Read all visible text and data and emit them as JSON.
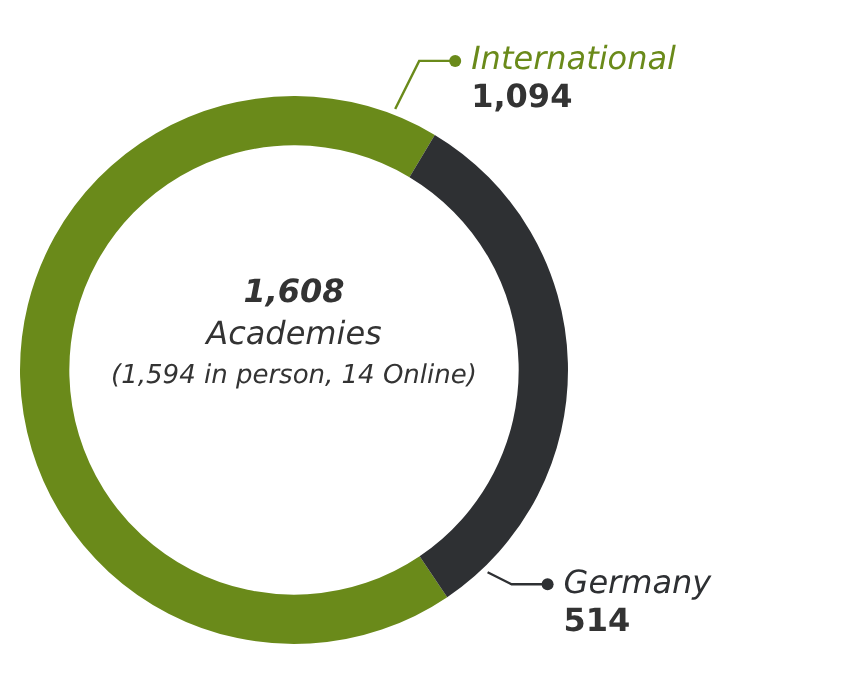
{
  "chart_data": {
    "type": "donut",
    "categories": [
      "International",
      "Germany"
    ],
    "values": [
      1094,
      514
    ],
    "colors": [
      "#6a8a1a",
      "#2e3033"
    ],
    "value_labels": [
      "1,094",
      "514"
    ],
    "legend": "right",
    "annotations": [
      "1,608",
      "Academies",
      "(1,594 in person, 14 Online)"
    ]
  }
}
